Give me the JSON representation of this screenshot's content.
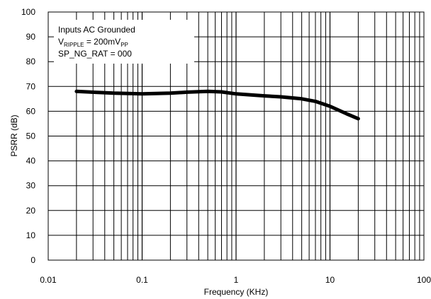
{
  "chart_data": {
    "type": "line",
    "xscale": "log",
    "xlabel": "Frequency (KHz)",
    "ylabel": "PSRR (dB)",
    "xlim": [
      0.01,
      100
    ],
    "ylim": [
      0,
      100
    ],
    "grid": true,
    "xticks": [
      0.01,
      0.1,
      1,
      10,
      100
    ],
    "xtick_labels": [
      "0.01",
      "0.1",
      "1",
      "10",
      "100"
    ],
    "yticks": [
      0,
      10,
      20,
      30,
      40,
      50,
      60,
      70,
      80,
      90,
      100
    ],
    "ytick_labels": [
      "0",
      "10",
      "20",
      "30",
      "40",
      "50",
      "60",
      "70",
      "80",
      "90",
      "100"
    ],
    "annotations": {
      "line1": "Inputs AC Grounded",
      "line2_prefix": "V",
      "line2_sub1": "RIPPLE",
      "line2_mid": " = 200mV",
      "line2_sub2": "PP",
      "line3": "SP_NG_RAT = 000"
    },
    "series": [
      {
        "x": [
          0.02,
          0.05,
          0.1,
          0.2,
          0.3,
          0.5,
          0.7,
          1,
          2,
          3,
          5,
          7,
          10,
          15,
          20
        ],
        "y": [
          68,
          67.3,
          67,
          67.3,
          67.7,
          68,
          67.8,
          67,
          66.2,
          65.8,
          65,
          64,
          62,
          59,
          57
        ]
      }
    ]
  }
}
